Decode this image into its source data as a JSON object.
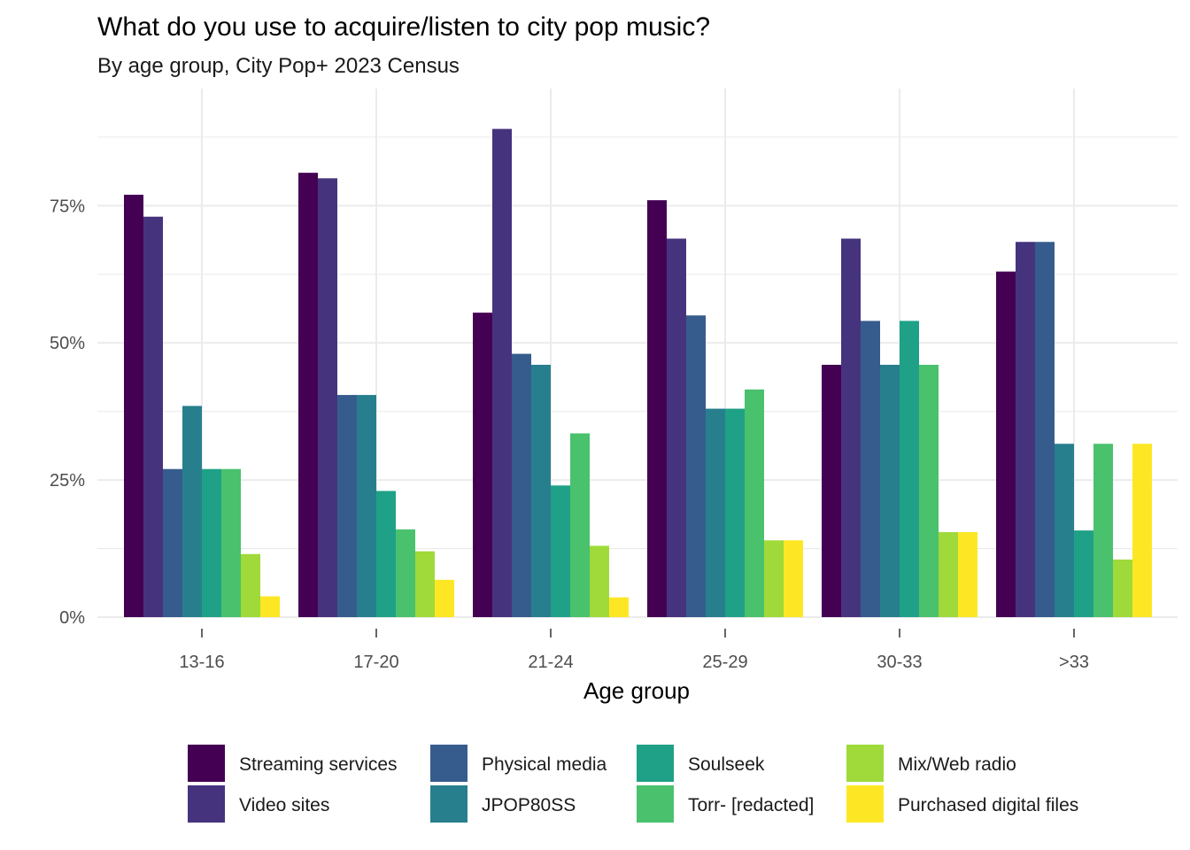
{
  "chart_data": {
    "type": "bar",
    "title": "What do you use to acquire/listen to city pop music?",
    "subtitle": "By age group, City Pop+ 2023 Census",
    "xlabel": "Age group",
    "ylabel": "",
    "ylim": [
      0,
      0.92
    ],
    "y_ticks": [
      0,
      0.25,
      0.5,
      0.75
    ],
    "y_tick_labels": [
      "0%",
      "25%",
      "50%",
      "75%"
    ],
    "categories": [
      "13-16",
      "17-20",
      "21-24",
      "25-29",
      "30-33",
      ">33"
    ],
    "grid": true,
    "legend_position": "bottom",
    "series": [
      {
        "name": "Streaming services",
        "color": "#440154",
        "values": [
          0.77,
          0.81,
          0.555,
          0.76,
          0.46,
          0.63
        ]
      },
      {
        "name": "Video sites",
        "color": "#46337E",
        "values": [
          0.73,
          0.8,
          0.89,
          0.69,
          0.69,
          0.684
        ]
      },
      {
        "name": "Physical media",
        "color": "#365C8D",
        "values": [
          0.27,
          0.405,
          0.48,
          0.55,
          0.54,
          0.684
        ]
      },
      {
        "name": "JPOP80SS",
        "color": "#277F8E",
        "values": [
          0.385,
          0.405,
          0.46,
          0.38,
          0.46,
          0.316
        ]
      },
      {
        "name": "Soulseek",
        "color": "#1FA187",
        "values": [
          0.27,
          0.23,
          0.24,
          0.38,
          0.54,
          0.158
        ]
      },
      {
        "name": "Torr- [redacted]",
        "color": "#4AC16D",
        "values": [
          0.27,
          0.16,
          0.335,
          0.415,
          0.46,
          0.316
        ]
      },
      {
        "name": "Mix/Web radio",
        "color": "#9FDA3A",
        "values": [
          0.115,
          0.12,
          0.13,
          0.14,
          0.155,
          0.105
        ]
      },
      {
        "name": "Purchased digital files",
        "color": "#FDE725",
        "values": [
          0.038,
          0.068,
          0.036,
          0.14,
          0.155,
          0.316
        ]
      }
    ]
  }
}
